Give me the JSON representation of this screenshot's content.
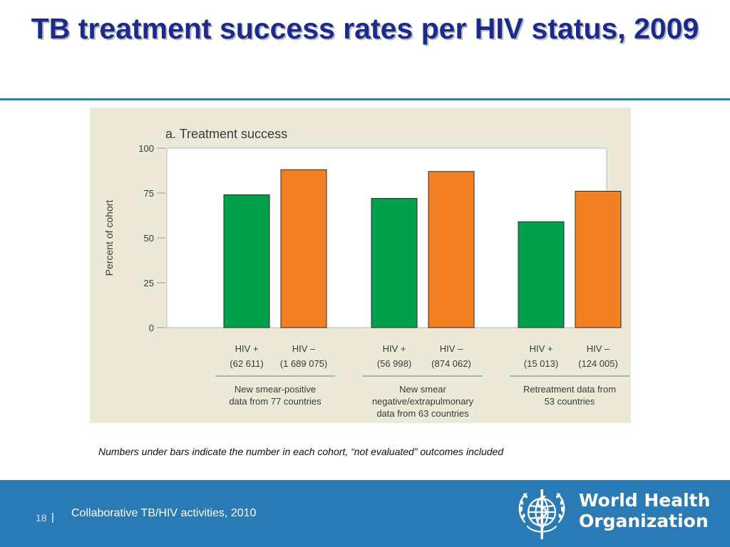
{
  "slide": {
    "title": "TB treatment success rates per HIV status, 2009",
    "footnote": "Numbers under bars indicate the number in each cohort, “not evaluated” outcomes included",
    "page_number": "18",
    "page_separator": "|",
    "footer_caption": "Collaborative TB/HIV activities, 2010",
    "org_name_line1": "World Health",
    "org_name_line2": "Organization",
    "colors": {
      "title": "#1c2a8c",
      "footer_background": "#2a7ab5",
      "panel_background": "#ece9d9",
      "hiv_positive": "#00a04a",
      "hiv_negative": "#f28023"
    }
  },
  "chart_data": {
    "type": "bar",
    "title": "a. Treatment success",
    "ylabel": "Percent of cohort",
    "ylim": [
      0,
      100
    ],
    "yticks": [
      "0",
      "25",
      "50",
      "75",
      "100"
    ],
    "grid": false,
    "groups": [
      {
        "caption": [
          "New smear-positive",
          "data from 77 countries"
        ],
        "bars": [
          {
            "label": "HIV +",
            "cohort": "(62 611)",
            "value": 74,
            "color": "#00a04a"
          },
          {
            "label": "HIV –",
            "cohort": "(1 689 075)",
            "value": 88,
            "color": "#f28023"
          }
        ]
      },
      {
        "caption": [
          "New smear",
          "negative/extrapulmonary",
          "data from 63 countries"
        ],
        "bars": [
          {
            "label": "HIV +",
            "cohort": "(56 998)",
            "value": 72,
            "color": "#00a04a"
          },
          {
            "label": "HIV –",
            "cohort": "(874 062)",
            "value": 87,
            "color": "#f28023"
          }
        ]
      },
      {
        "caption": [
          "Retreatment data from",
          "53 countries"
        ],
        "bars": [
          {
            "label": "HIV +",
            "cohort": "(15 013)",
            "value": 59,
            "color": "#00a04a"
          },
          {
            "label": "HIV –",
            "cohort": "(124 005)",
            "value": 76,
            "color": "#f28023"
          }
        ]
      }
    ]
  }
}
